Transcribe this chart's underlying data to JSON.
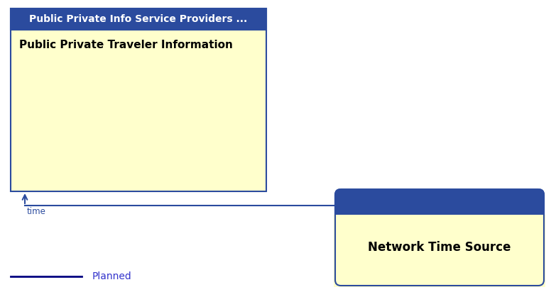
{
  "box1_title": "Public Private Info Service Providers ...",
  "box1_label": "Public Private Traveler Information",
  "box1_title_bg": "#2B4B9E",
  "box1_title_color": "#FFFFFF",
  "box1_label_color": "#000000",
  "box1_bg": "#FFFFCC",
  "box1_border": "#2B4B9E",
  "box2_title": "Network Time Source",
  "box2_bg": "#FFFFCC",
  "box2_title_bg": "#2B4B9E",
  "box2_title_color": "#FFFFFF",
  "box2_border": "#2B4B9E",
  "arrow_color": "#2B4B9E",
  "line_color": "#2B4B9E",
  "line_label": "time",
  "line_label_color": "#2B4B9E",
  "legend_line_color": "#000080",
  "legend_label": "Planned",
  "legend_label_color": "#3333CC",
  "bg_color": "#FFFFFF"
}
